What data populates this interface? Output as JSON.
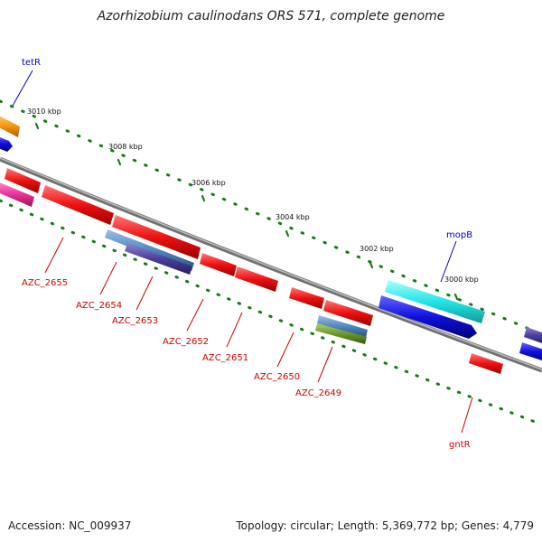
{
  "title": "Azorhizobium caulinodans ORS 571, complete genome",
  "footer": {
    "accession": "Accession: NC_009937",
    "stats": "Topology: circular; Length: 5,369,772 bp; Genes: 4,779"
  },
  "ticks": [
    "3010 kbp",
    "3008 kbp",
    "3006 kbp",
    "3004 kbp",
    "3002 kbp",
    "3000 kbp"
  ],
  "gene_labels": [
    {
      "name": "tetR",
      "color": "#0000cc"
    },
    {
      "name": "AZC_2655",
      "color": "#cc0000"
    },
    {
      "name": "AZC_2654",
      "color": "#cc0000"
    },
    {
      "name": "AZC_2653",
      "color": "#cc0000"
    },
    {
      "name": "AZC_2652",
      "color": "#cc0000"
    },
    {
      "name": "AZC_2651",
      "color": "#cc0000"
    },
    {
      "name": "AZC_2650",
      "color": "#cc0000"
    },
    {
      "name": "AZC_2649",
      "color": "#cc0000"
    },
    {
      "name": "mopB",
      "color": "#0000cc"
    },
    {
      "name": "gntR",
      "color": "#cc0000"
    }
  ],
  "colors": {
    "backbone": "#8a8a8a",
    "tick_dots": "#1a7a1a",
    "red_gene": "#ee1111",
    "blue_gene": "#1010dd",
    "cyan_gene": "#22e5e5",
    "steel_gene": "#4f86bd",
    "purple_gene": "#4b3f9b",
    "olive_gene": "#6a9a2a",
    "orange_gene": "#f59a10",
    "magenta_gene": "#ee3399"
  }
}
